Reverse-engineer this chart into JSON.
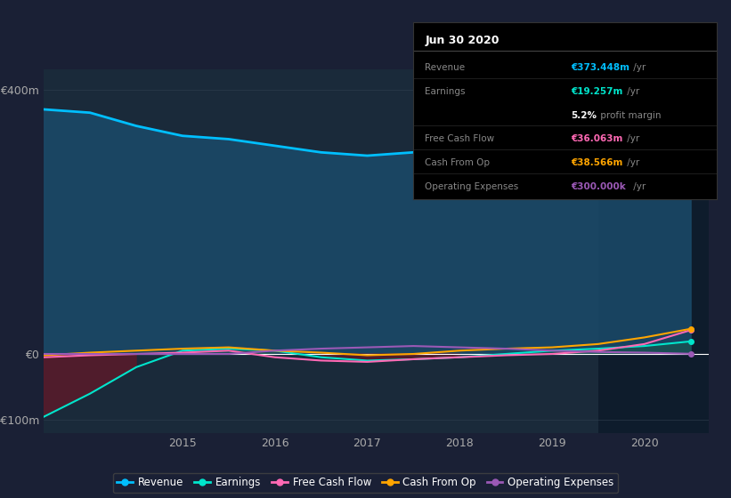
{
  "background_color": "#1a2035",
  "plot_bg_color": "#1a2a3a",
  "grid_color": "#2a3a4a",
  "zero_line_color": "#ffffff",
  "years": [
    2013.5,
    2014.0,
    2014.5,
    2015.0,
    2015.5,
    2016.0,
    2016.5,
    2017.0,
    2017.5,
    2018.0,
    2018.5,
    2019.0,
    2019.5,
    2020.0,
    2020.5
  ],
  "revenue": [
    370,
    365,
    345,
    330,
    325,
    315,
    305,
    300,
    305,
    310,
    325,
    340,
    355,
    365,
    373
  ],
  "earnings": [
    -95,
    -60,
    -20,
    5,
    8,
    5,
    -5,
    -10,
    -8,
    -5,
    0,
    5,
    8,
    12,
    19
  ],
  "free_cash_flow": [
    -5,
    -2,
    0,
    2,
    5,
    -5,
    -10,
    -12,
    -8,
    -5,
    -2,
    0,
    5,
    15,
    36
  ],
  "cash_from_op": [
    -2,
    2,
    5,
    8,
    10,
    5,
    2,
    -2,
    0,
    5,
    8,
    10,
    15,
    25,
    38
  ],
  "operating_expenses": [
    0,
    0,
    0,
    0,
    0,
    5,
    8,
    10,
    12,
    10,
    8,
    5,
    3,
    2,
    0.3
  ],
  "revenue_color": "#00bfff",
  "earnings_color": "#00e5cc",
  "free_cash_flow_color": "#ff69b4",
  "cash_from_op_color": "#ffa500",
  "operating_expenses_color": "#9b59b6",
  "revenue_fill_color": "#1a4a6a",
  "earnings_fill_color_pos": "#1a5a4a",
  "earnings_fill_color_neg": "#5a1a2a",
  "highlight_bg_color": "#0d1a2a",
  "ylim": [
    -120,
    430
  ],
  "xlim": [
    2013.5,
    2020.7
  ],
  "yticks": [
    -100,
    0,
    400
  ],
  "ytick_labels": [
    "-€100m",
    "€0",
    "€400m"
  ],
  "xticks": [
    2015,
    2016,
    2017,
    2018,
    2019,
    2020
  ],
  "xtick_labels": [
    "2015",
    "2016",
    "2017",
    "2018",
    "2019",
    "2020"
  ],
  "tooltip_title": "Jun 30 2020",
  "tooltip_bg": "#000000",
  "tooltip_border": "#333333",
  "tooltip_rows": [
    {
      "label": "Revenue",
      "value": "€373.448m",
      "suffix": " /yr",
      "value_color": "#00bfff",
      "sep_before": true
    },
    {
      "label": "Earnings",
      "value": "€19.257m",
      "suffix": " /yr",
      "value_color": "#00e5cc",
      "sep_before": true
    },
    {
      "label": "",
      "value": "5.2%",
      "suffix": " profit margin",
      "value_color": "#ffffff",
      "sep_before": false
    },
    {
      "label": "Free Cash Flow",
      "value": "€36.063m",
      "suffix": " /yr",
      "value_color": "#ff69b4",
      "sep_before": true
    },
    {
      "label": "Cash From Op",
      "value": "€38.566m",
      "suffix": " /yr",
      "value_color": "#ffa500",
      "sep_before": true
    },
    {
      "label": "Operating Expenses",
      "value": "€300.000k",
      "suffix": " /yr",
      "value_color": "#9b59b6",
      "sep_before": true
    }
  ],
  "legend_items": [
    {
      "label": "Revenue",
      "color": "#00bfff"
    },
    {
      "label": "Earnings",
      "color": "#00e5cc"
    },
    {
      "label": "Free Cash Flow",
      "color": "#ff69b4"
    },
    {
      "label": "Cash From Op",
      "color": "#ffa500"
    },
    {
      "label": "Operating Expenses",
      "color": "#9b59b6"
    }
  ]
}
